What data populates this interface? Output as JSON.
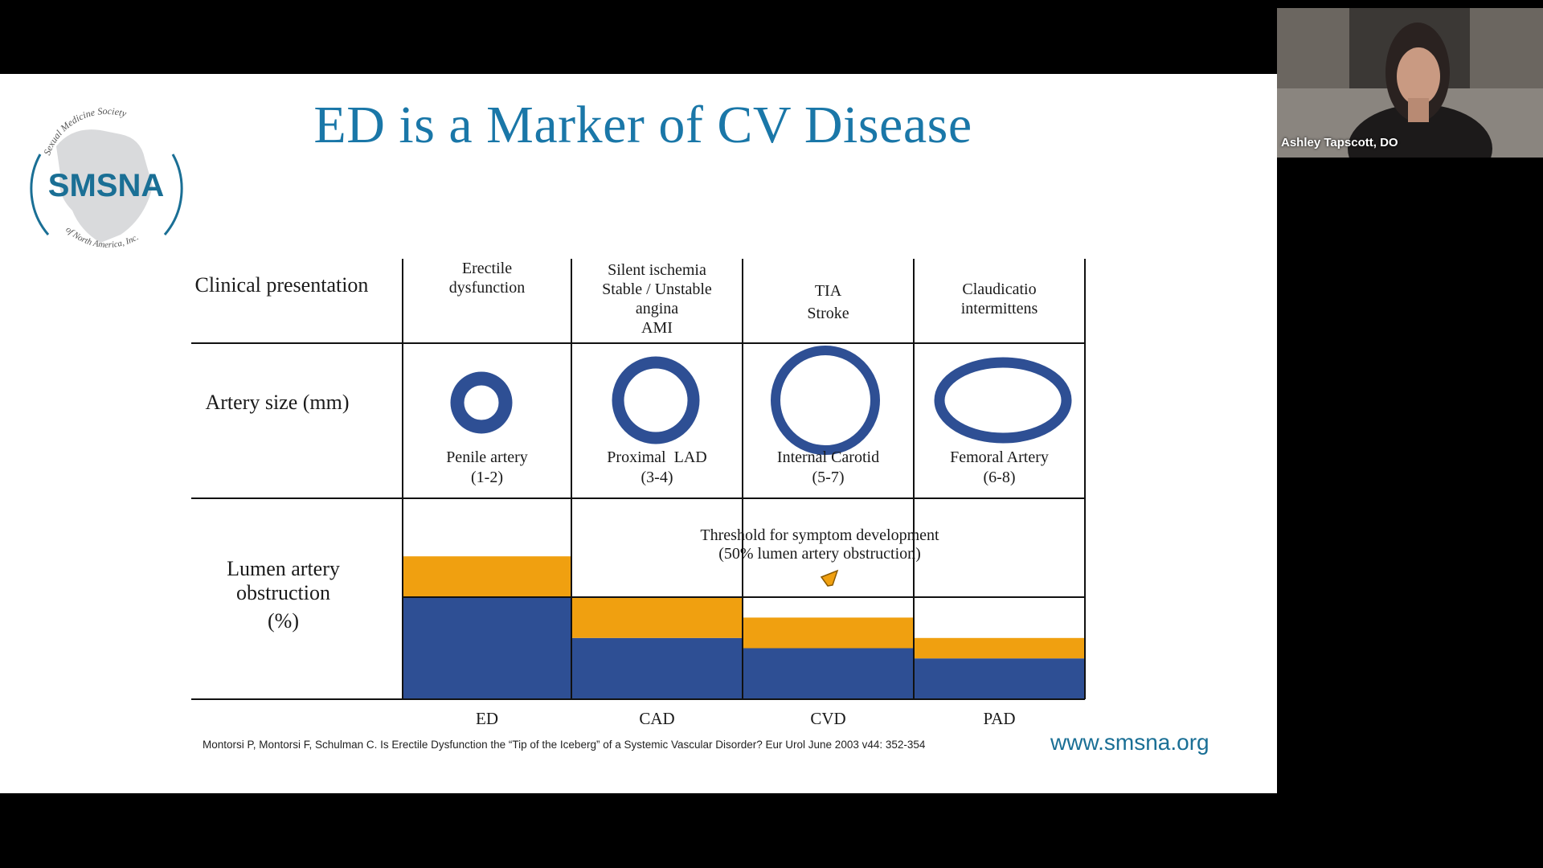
{
  "slide": {
    "title": "ED is a Marker of CV Disease",
    "logo": {
      "top_arc": "Sexual Medicine Society",
      "name": "SMSNA",
      "bottom_arc": "of North America, Inc."
    },
    "table": {
      "row_headers": {
        "clinical": "Clinical presentation",
        "artery_size": "Artery size (mm)",
        "obstruction": "Lumen artery obstruction",
        "obstruction_unit": "(%)"
      },
      "columns": [
        {
          "presentation": [
            "",
            "Erectile",
            "dysfunction",
            ""
          ],
          "artery": "Penile artery",
          "size": "(1-2)",
          "abbr": "ED"
        },
        {
          "presentation": [
            "Silent ischemia",
            "Stable / Unstable",
            "angina",
            "AMI"
          ],
          "artery": "Proximal  LAD",
          "size": "(3-4)",
          "abbr": "CAD"
        },
        {
          "presentation": [
            "",
            "TIA",
            "Stroke",
            ""
          ],
          "artery": "Internal Carotid",
          "size": "(5-7)",
          "abbr": "CVD"
        },
        {
          "presentation": [
            "",
            "Claudicatio",
            "intermittens",
            ""
          ],
          "artery": "Femoral Artery",
          "size": "(6-8)",
          "abbr": "PAD"
        }
      ],
      "threshold_line1": "Threshold for symptom development",
      "threshold_line2": "(50% lumen artery obstruction)"
    },
    "reference": "Montorsi P, Montorsi F, Schulman C. Is Erectile Dysfunction the “Tip of the Iceberg” of a Systemic Vascular Disorder? Eur Urol June 2003 v44: 352-354",
    "url": "www.smsna.org"
  },
  "webcam": {
    "name": "Ashley Tapscott, DO"
  },
  "colors": {
    "title": "#1a77a8",
    "navy": "#2e4f94",
    "orange": "#f0a010"
  },
  "chart_data": {
    "type": "bar",
    "categories": [
      "ED",
      "CAD",
      "CVD",
      "PAD"
    ],
    "series": [
      {
        "values": [
          50,
          30,
          25,
          20
        ]
      },
      {
        "values": [
          20,
          20,
          15,
          10
        ]
      }
    ],
    "threshold": 50,
    "ylim": [
      0,
      70
    ]
  }
}
